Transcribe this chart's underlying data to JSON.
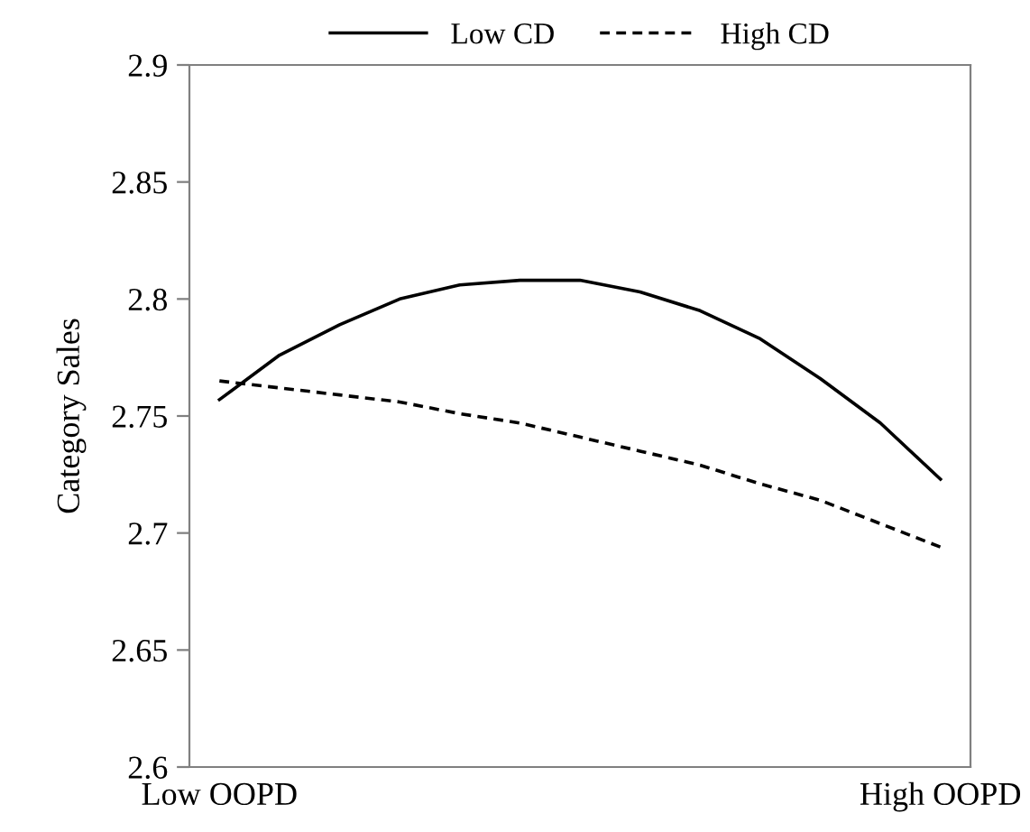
{
  "chart_data": {
    "type": "line",
    "ylabel": "Category Sales",
    "categories": [
      "Low OOPD",
      null,
      null,
      null,
      null,
      null,
      null,
      null,
      null,
      null,
      null,
      null,
      "High OOPD"
    ],
    "ylim": [
      2.6,
      2.9
    ],
    "yticks": [
      2.6,
      2.65,
      2.7,
      2.75,
      2.8,
      2.85,
      2.9
    ],
    "grid": false,
    "legend": "top",
    "marker": "none",
    "series": [
      {
        "name": "Low CD",
        "color": "#000000",
        "line_style": "solid",
        "values": [
          2.757,
          2.776,
          2.789,
          2.8,
          2.806,
          2.808,
          2.808,
          2.803,
          2.795,
          2.783,
          2.766,
          2.747,
          2.723
        ]
      },
      {
        "name": "High CD",
        "color": "#000000",
        "line_style": "dashed",
        "values": [
          2.765,
          2.762,
          2.759,
          2.756,
          2.751,
          2.747,
          2.741,
          2.735,
          2.729,
          2.721,
          2.714,
          2.704,
          2.694
        ]
      }
    ]
  }
}
